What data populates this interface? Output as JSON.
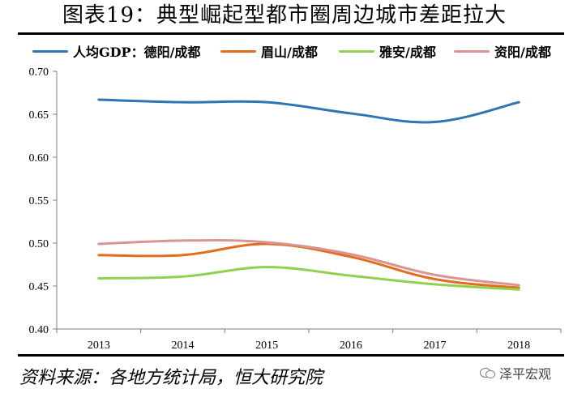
{
  "title": "图表19：典型崛起型都市圈周边城市差距拉大",
  "legend_prefix": "人均GDP：",
  "source": "资料来源：各地方统计局，恒大研究院",
  "watermark": "泽平宏观",
  "chart_data": {
    "type": "line",
    "title": "图表19：典型崛起型都市圈周边城市差距拉大",
    "xlabel": "",
    "ylabel": "",
    "categories": [
      "2013",
      "2014",
      "2015",
      "2016",
      "2017",
      "2018"
    ],
    "ylim": [
      0.4,
      0.7
    ],
    "yticks": [
      "0.40",
      "0.45",
      "0.50",
      "0.55",
      "0.60",
      "0.65",
      "0.70"
    ],
    "grid": false,
    "legend_position": "top",
    "series": [
      {
        "name": "德阳/成都",
        "color": "#2E75B6",
        "values": [
          0.667,
          0.664,
          0.664,
          0.651,
          0.641,
          0.664
        ]
      },
      {
        "name": "眉山/成都",
        "color": "#E36C1E",
        "values": [
          0.486,
          0.486,
          0.499,
          0.484,
          0.458,
          0.448
        ]
      },
      {
        "name": "雅安/成都",
        "color": "#92D050",
        "values": [
          0.459,
          0.461,
          0.472,
          0.462,
          0.452,
          0.446
        ]
      },
      {
        "name": "资阳/成都",
        "color": "#D99594",
        "values": [
          0.499,
          0.503,
          0.501,
          0.487,
          0.463,
          0.451
        ]
      }
    ]
  }
}
